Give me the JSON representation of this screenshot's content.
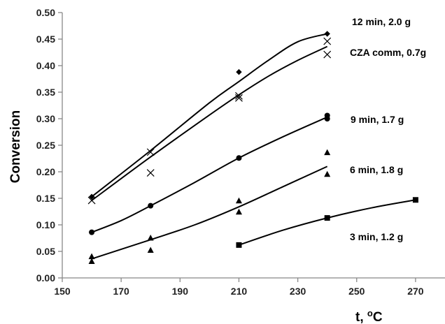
{
  "chart_data": {
    "type": "scatter",
    "xlabel": "t, ",
    "xlabel_unit": "oC",
    "ylabel": "Conversion",
    "xlim": [
      150,
      280
    ],
    "ylim": [
      0,
      0.5
    ],
    "x_ticks": [
      "150",
      "170",
      "190",
      "210",
      "230",
      "250",
      "270"
    ],
    "y_ticks": [
      "0.00",
      "0.05",
      "0.10",
      "0.15",
      "0.20",
      "0.25",
      "0.30",
      "0.35",
      "0.40",
      "0.45",
      "0.50"
    ],
    "grid": false,
    "color": "#000000",
    "series": [
      {
        "name": "12 min, 2.0 g",
        "marker": "diamond",
        "points": [
          [
            160,
            0.153
          ],
          [
            210,
            0.388
          ],
          [
            240,
            0.46
          ]
        ],
        "trend": [
          [
            160,
            0.153
          ],
          [
            180,
            0.24
          ],
          [
            200,
            0.33
          ],
          [
            210,
            0.37
          ],
          [
            220,
            0.41
          ],
          [
            230,
            0.445
          ],
          [
            240,
            0.46
          ]
        ]
      },
      {
        "name": "CZA comm, 0.7g",
        "marker": "x",
        "points": [
          [
            160,
            0.146
          ],
          [
            180,
            0.237
          ],
          [
            180,
            0.198
          ],
          [
            210,
            0.343
          ],
          [
            210,
            0.339
          ],
          [
            240,
            0.446
          ],
          [
            240,
            0.421
          ]
        ],
        "trend": [
          [
            160,
            0.146
          ],
          [
            180,
            0.228
          ],
          [
            200,
            0.307
          ],
          [
            210,
            0.345
          ],
          [
            220,
            0.38
          ],
          [
            230,
            0.41
          ],
          [
            240,
            0.436
          ]
        ]
      },
      {
        "name": "9 min, 1.7 g",
        "marker": "circle",
        "points": [
          [
            160,
            0.086
          ],
          [
            180,
            0.136
          ],
          [
            210,
            0.226
          ],
          [
            240,
            0.306
          ],
          [
            240,
            0.3
          ]
        ],
        "trend": [
          [
            160,
            0.086
          ],
          [
            170,
            0.108
          ],
          [
            180,
            0.136
          ],
          [
            195,
            0.18
          ],
          [
            210,
            0.226
          ],
          [
            225,
            0.266
          ],
          [
            240,
            0.303
          ]
        ]
      },
      {
        "name": "6 min, 1.8 g",
        "marker": "triangle",
        "points": [
          [
            160,
            0.04
          ],
          [
            160,
            0.031
          ],
          [
            180,
            0.075
          ],
          [
            180,
            0.052
          ],
          [
            210,
            0.145
          ],
          [
            210,
            0.124
          ],
          [
            240,
            0.236
          ],
          [
            240,
            0.195
          ]
        ],
        "trend": [
          [
            160,
            0.036
          ],
          [
            180,
            0.072
          ],
          [
            195,
            0.1
          ],
          [
            210,
            0.134
          ],
          [
            225,
            0.172
          ],
          [
            240,
            0.21
          ]
        ]
      },
      {
        "name": "3 min, 1.2 g",
        "marker": "square",
        "points": [
          [
            210,
            0.062
          ],
          [
            240,
            0.113
          ],
          [
            270,
            0.147
          ]
        ],
        "trend": [
          [
            210,
            0.062
          ],
          [
            225,
            0.09
          ],
          [
            240,
            0.113
          ],
          [
            255,
            0.132
          ],
          [
            270,
            0.147
          ]
        ]
      }
    ]
  }
}
